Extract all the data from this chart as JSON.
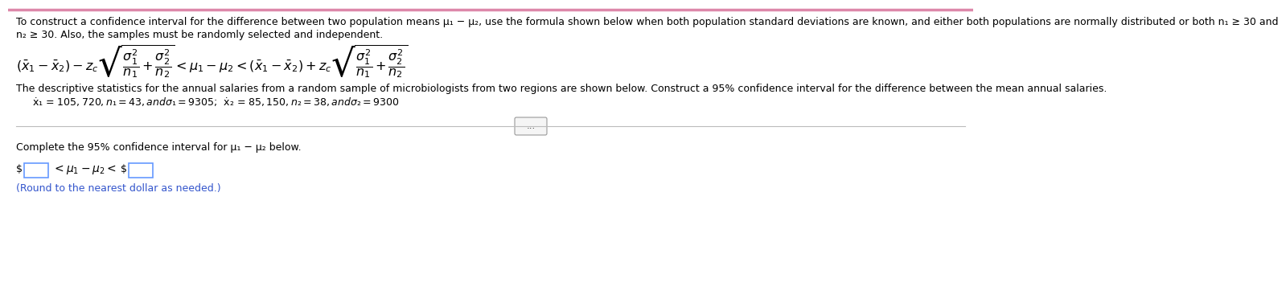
{
  "bg_color": "#ffffff",
  "top_border_color": "#cc0000",
  "text_color": "#000000",
  "blue_color": "#3355cc",
  "box_border_color": "#6699ff",
  "divider_color": "#bbbbbb",
  "line1": "To construct a confidence interval for the difference between two population means μ₁ − μ₂, use the formula shown below when both population standard deviations are known, and either both populations are normally distributed or both n₁ ≥ 30 and",
  "line2": "n₂ ≥ 30. Also, the samples must be randomly selected and independent.",
  "line3": "The descriptive statistics for the annual salaries from a random sample of microbiologists from two regions are shown below. Construct a 95% confidence interval for the difference between the mean annual salaries.",
  "line4": "ẋ₁ = $105,720, n₁ = 43, and σ₁ = $9305;  ẋ₂ = $85,150, n₂ = 38, and σ₂ = $9300",
  "line5": "Complete the 95% confidence interval for μ₁ − μ₂ below.",
  "line6": "(Round to the nearest dollar as needed.)",
  "fontsize_main": 9.0,
  "fontsize_formula": 11.5,
  "fontsize_small": 8.5
}
